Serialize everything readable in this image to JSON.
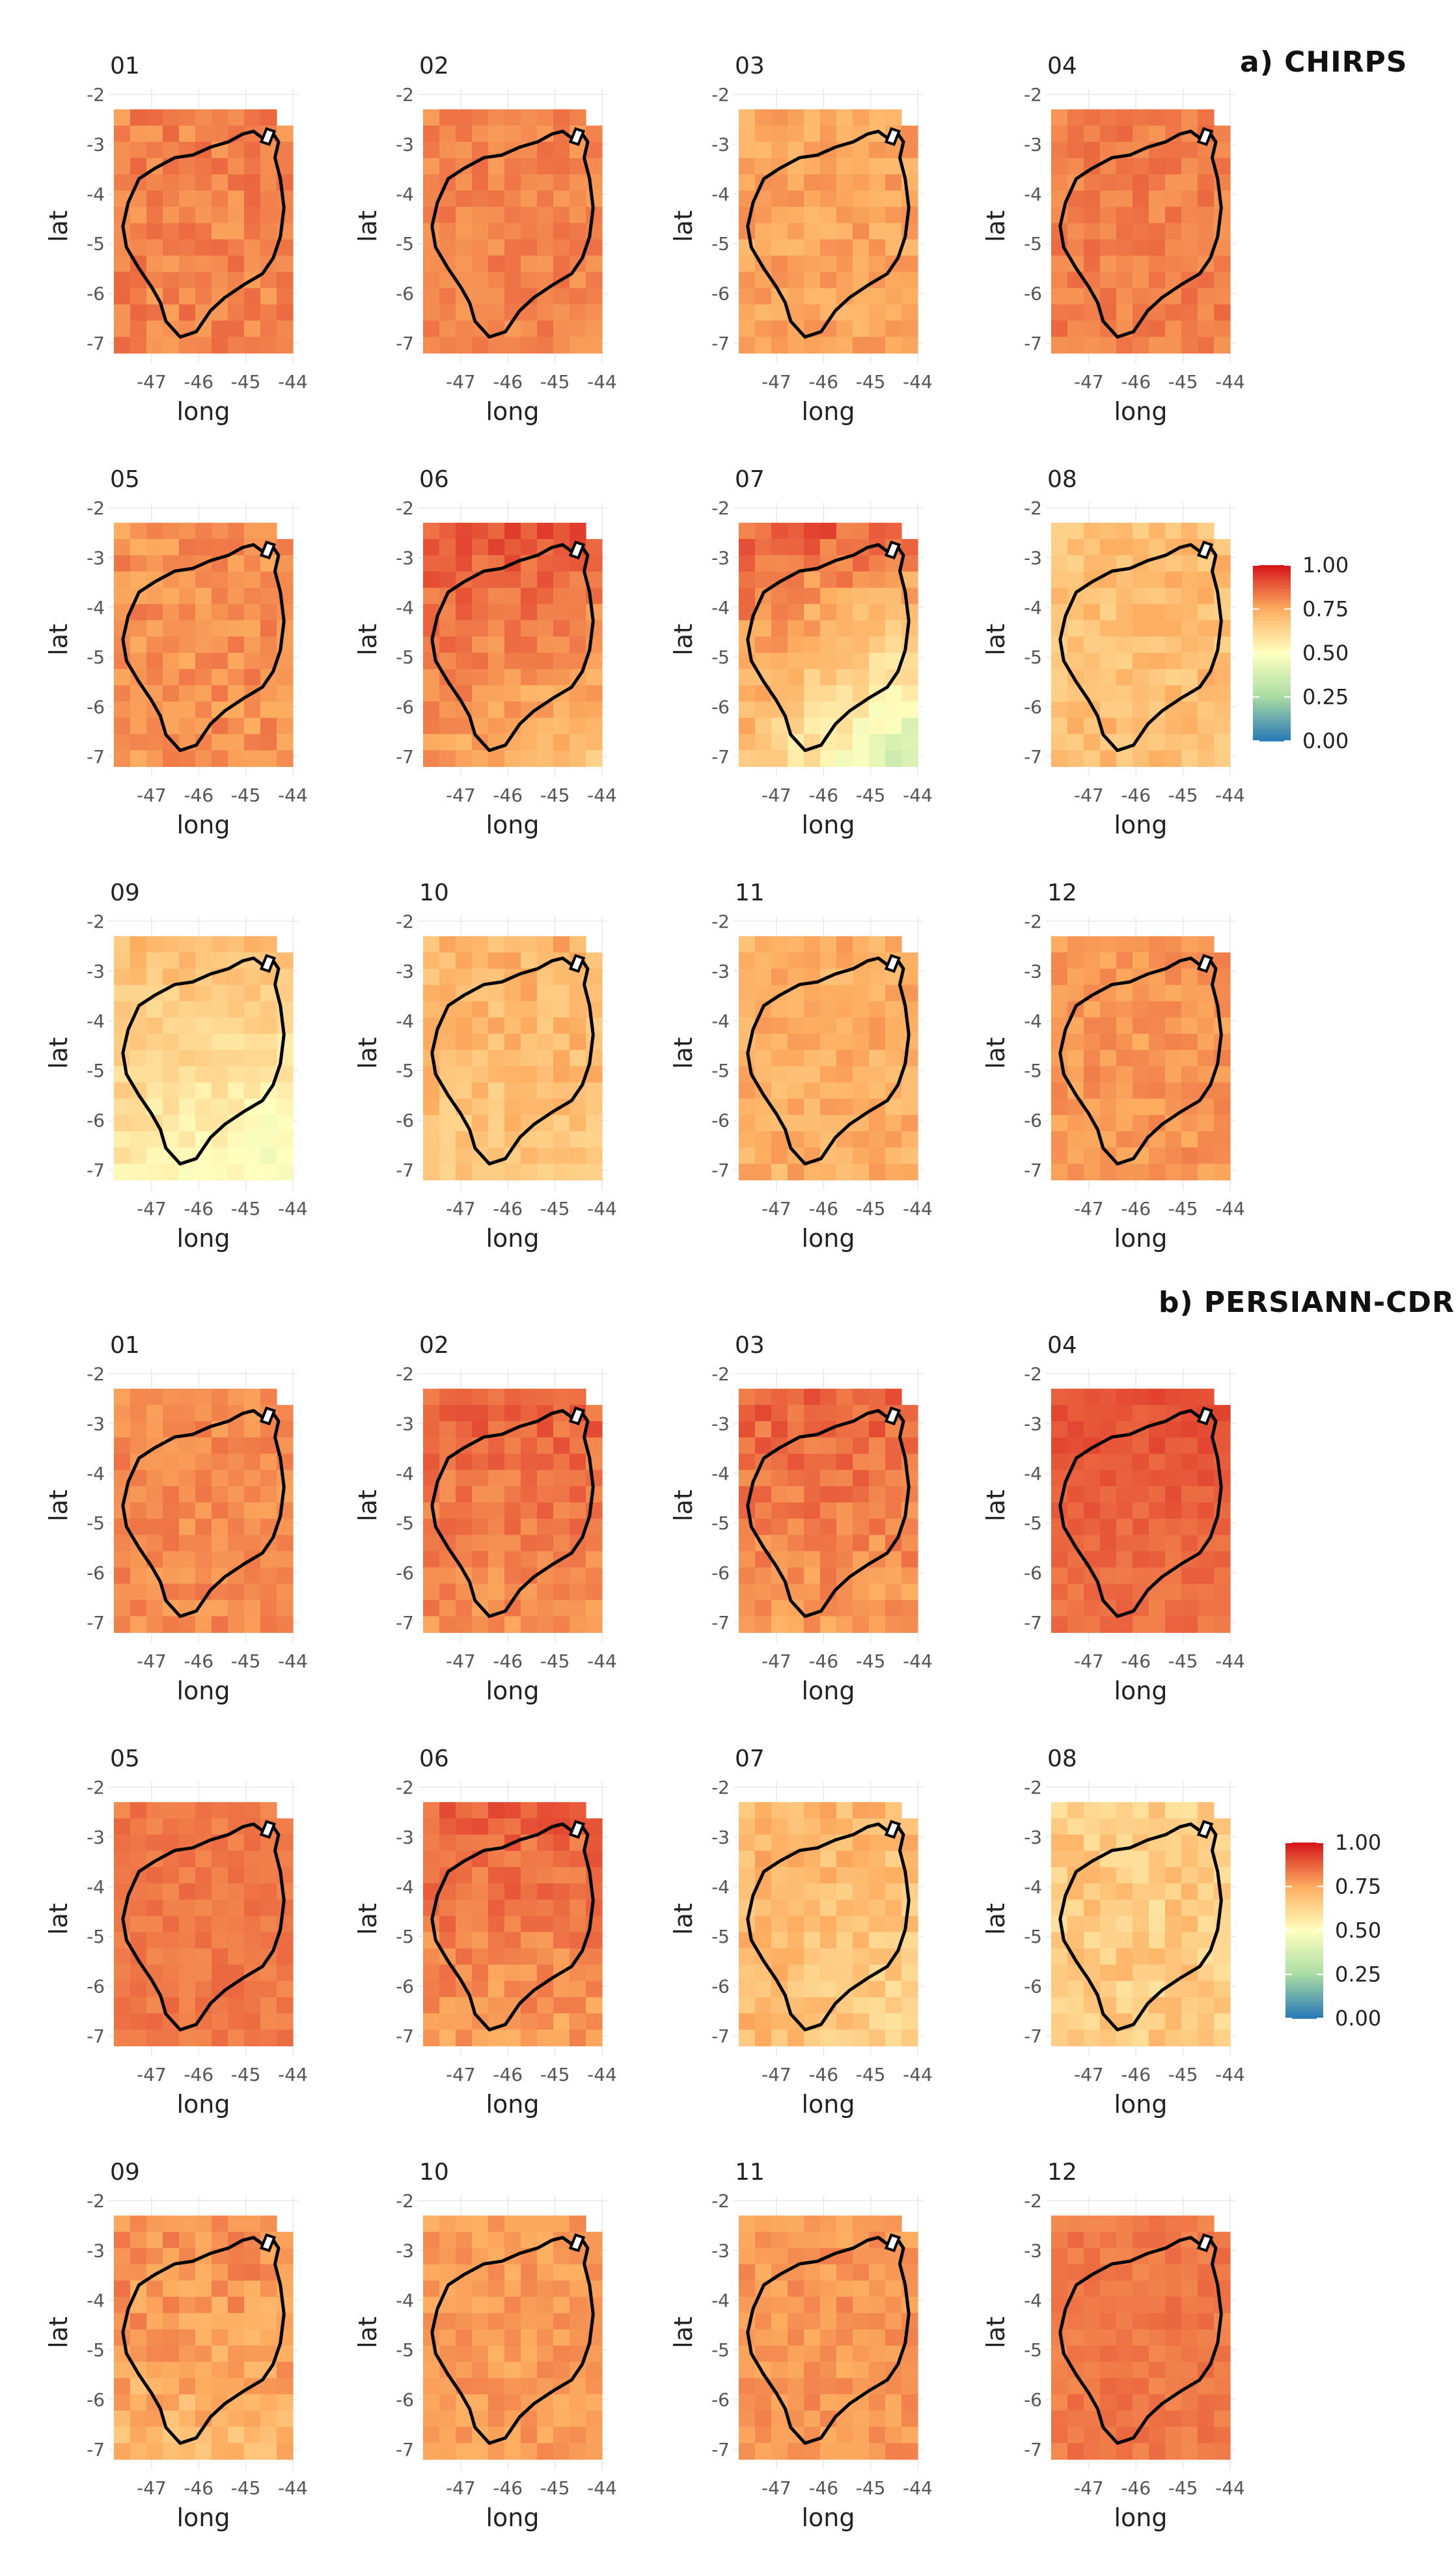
{
  "figure": {
    "sections": [
      {
        "id": "chirps",
        "label": "a) CHIRPS"
      },
      {
        "id": "persiann",
        "label": "b) PERSIANN-CDR"
      }
    ],
    "months": [
      "01",
      "02",
      "03",
      "04",
      "05",
      "06",
      "07",
      "08",
      "09",
      "10",
      "11",
      "12"
    ]
  },
  "chart_data": {
    "type": "heatmap",
    "xlabel": "long",
    "ylabel": "lat",
    "x_ticks": [
      -47,
      -46,
      -45,
      -44
    ],
    "y_ticks": [
      -2,
      -3,
      -4,
      -5,
      -6,
      -7
    ],
    "x_range": [
      -47.8,
      -44.0
    ],
    "y_range": [
      -7.3,
      -2.0
    ],
    "colorbar": {
      "ticks": [
        "1.00",
        "0.75",
        "0.50",
        "0.25",
        "0.00"
      ],
      "range": [
        0.0,
        1.0
      ],
      "colors": [
        "#2c7bb6",
        "#abdda4",
        "#ffffbf",
        "#fdae61",
        "#d7191c"
      ]
    },
    "cell_grid": {
      "columns": 11,
      "rows": 15
    },
    "panels": {
      "chirps": [
        {
          "month": "01",
          "mean": 0.82,
          "spread": 0.05,
          "gradient": [
            0.0,
            0.0
          ]
        },
        {
          "month": "02",
          "mean": 0.82,
          "spread": 0.04,
          "gradient": [
            0.0,
            0.0
          ]
        },
        {
          "month": "03",
          "mean": 0.76,
          "spread": 0.05,
          "gradient": [
            0.0,
            0.0
          ]
        },
        {
          "month": "04",
          "mean": 0.83,
          "spread": 0.04,
          "gradient": [
            0.0,
            0.0
          ]
        },
        {
          "month": "05",
          "mean": 0.8,
          "spread": 0.05,
          "gradient": [
            0.0,
            0.0
          ]
        },
        {
          "month": "06",
          "mean": 0.78,
          "spread": 0.05,
          "gradient": [
            -0.1,
            0.12
          ]
        },
        {
          "month": "07",
          "mean": 0.68,
          "spread": 0.06,
          "gradient": [
            -0.3,
            0.2
          ]
        },
        {
          "month": "08",
          "mean": 0.7,
          "spread": 0.06,
          "gradient": [
            0.0,
            0.0
          ]
        },
        {
          "month": "09",
          "mean": 0.56,
          "spread": 0.05,
          "gradient": [
            -0.1,
            0.15
          ]
        },
        {
          "month": "10",
          "mean": 0.68,
          "spread": 0.06,
          "gradient": [
            0.0,
            0.05
          ]
        },
        {
          "month": "11",
          "mean": 0.74,
          "spread": 0.05,
          "gradient": [
            0.0,
            0.0
          ]
        },
        {
          "month": "12",
          "mean": 0.79,
          "spread": 0.04,
          "gradient": [
            0.0,
            0.0
          ]
        }
      ],
      "persiann": [
        {
          "month": "01",
          "mean": 0.81,
          "spread": 0.04,
          "gradient": [
            0.0,
            0.0
          ]
        },
        {
          "month": "02",
          "mean": 0.8,
          "spread": 0.05,
          "gradient": [
            0.0,
            0.08
          ]
        },
        {
          "month": "03",
          "mean": 0.78,
          "spread": 0.05,
          "gradient": [
            0.0,
            0.1
          ]
        },
        {
          "month": "04",
          "mean": 0.85,
          "spread": 0.03,
          "gradient": [
            0.0,
            0.06
          ]
        },
        {
          "month": "05",
          "mean": 0.84,
          "spread": 0.03,
          "gradient": [
            0.0,
            0.0
          ]
        },
        {
          "month": "06",
          "mean": 0.78,
          "spread": 0.05,
          "gradient": [
            0.0,
            0.1
          ]
        },
        {
          "month": "07",
          "mean": 0.72,
          "spread": 0.06,
          "gradient": [
            -0.1,
            0.0
          ]
        },
        {
          "month": "08",
          "mean": 0.66,
          "spread": 0.07,
          "gradient": [
            0.0,
            0.0
          ]
        },
        {
          "month": "09",
          "mean": 0.72,
          "spread": 0.06,
          "gradient": [
            0.0,
            0.1
          ]
        },
        {
          "month": "10",
          "mean": 0.78,
          "spread": 0.04,
          "gradient": [
            0.0,
            0.0
          ]
        },
        {
          "month": "11",
          "mean": 0.79,
          "spread": 0.04,
          "gradient": [
            0.0,
            0.0
          ]
        },
        {
          "month": "12",
          "mean": 0.84,
          "spread": 0.03,
          "gradient": [
            0.0,
            0.0
          ]
        }
      ]
    }
  }
}
